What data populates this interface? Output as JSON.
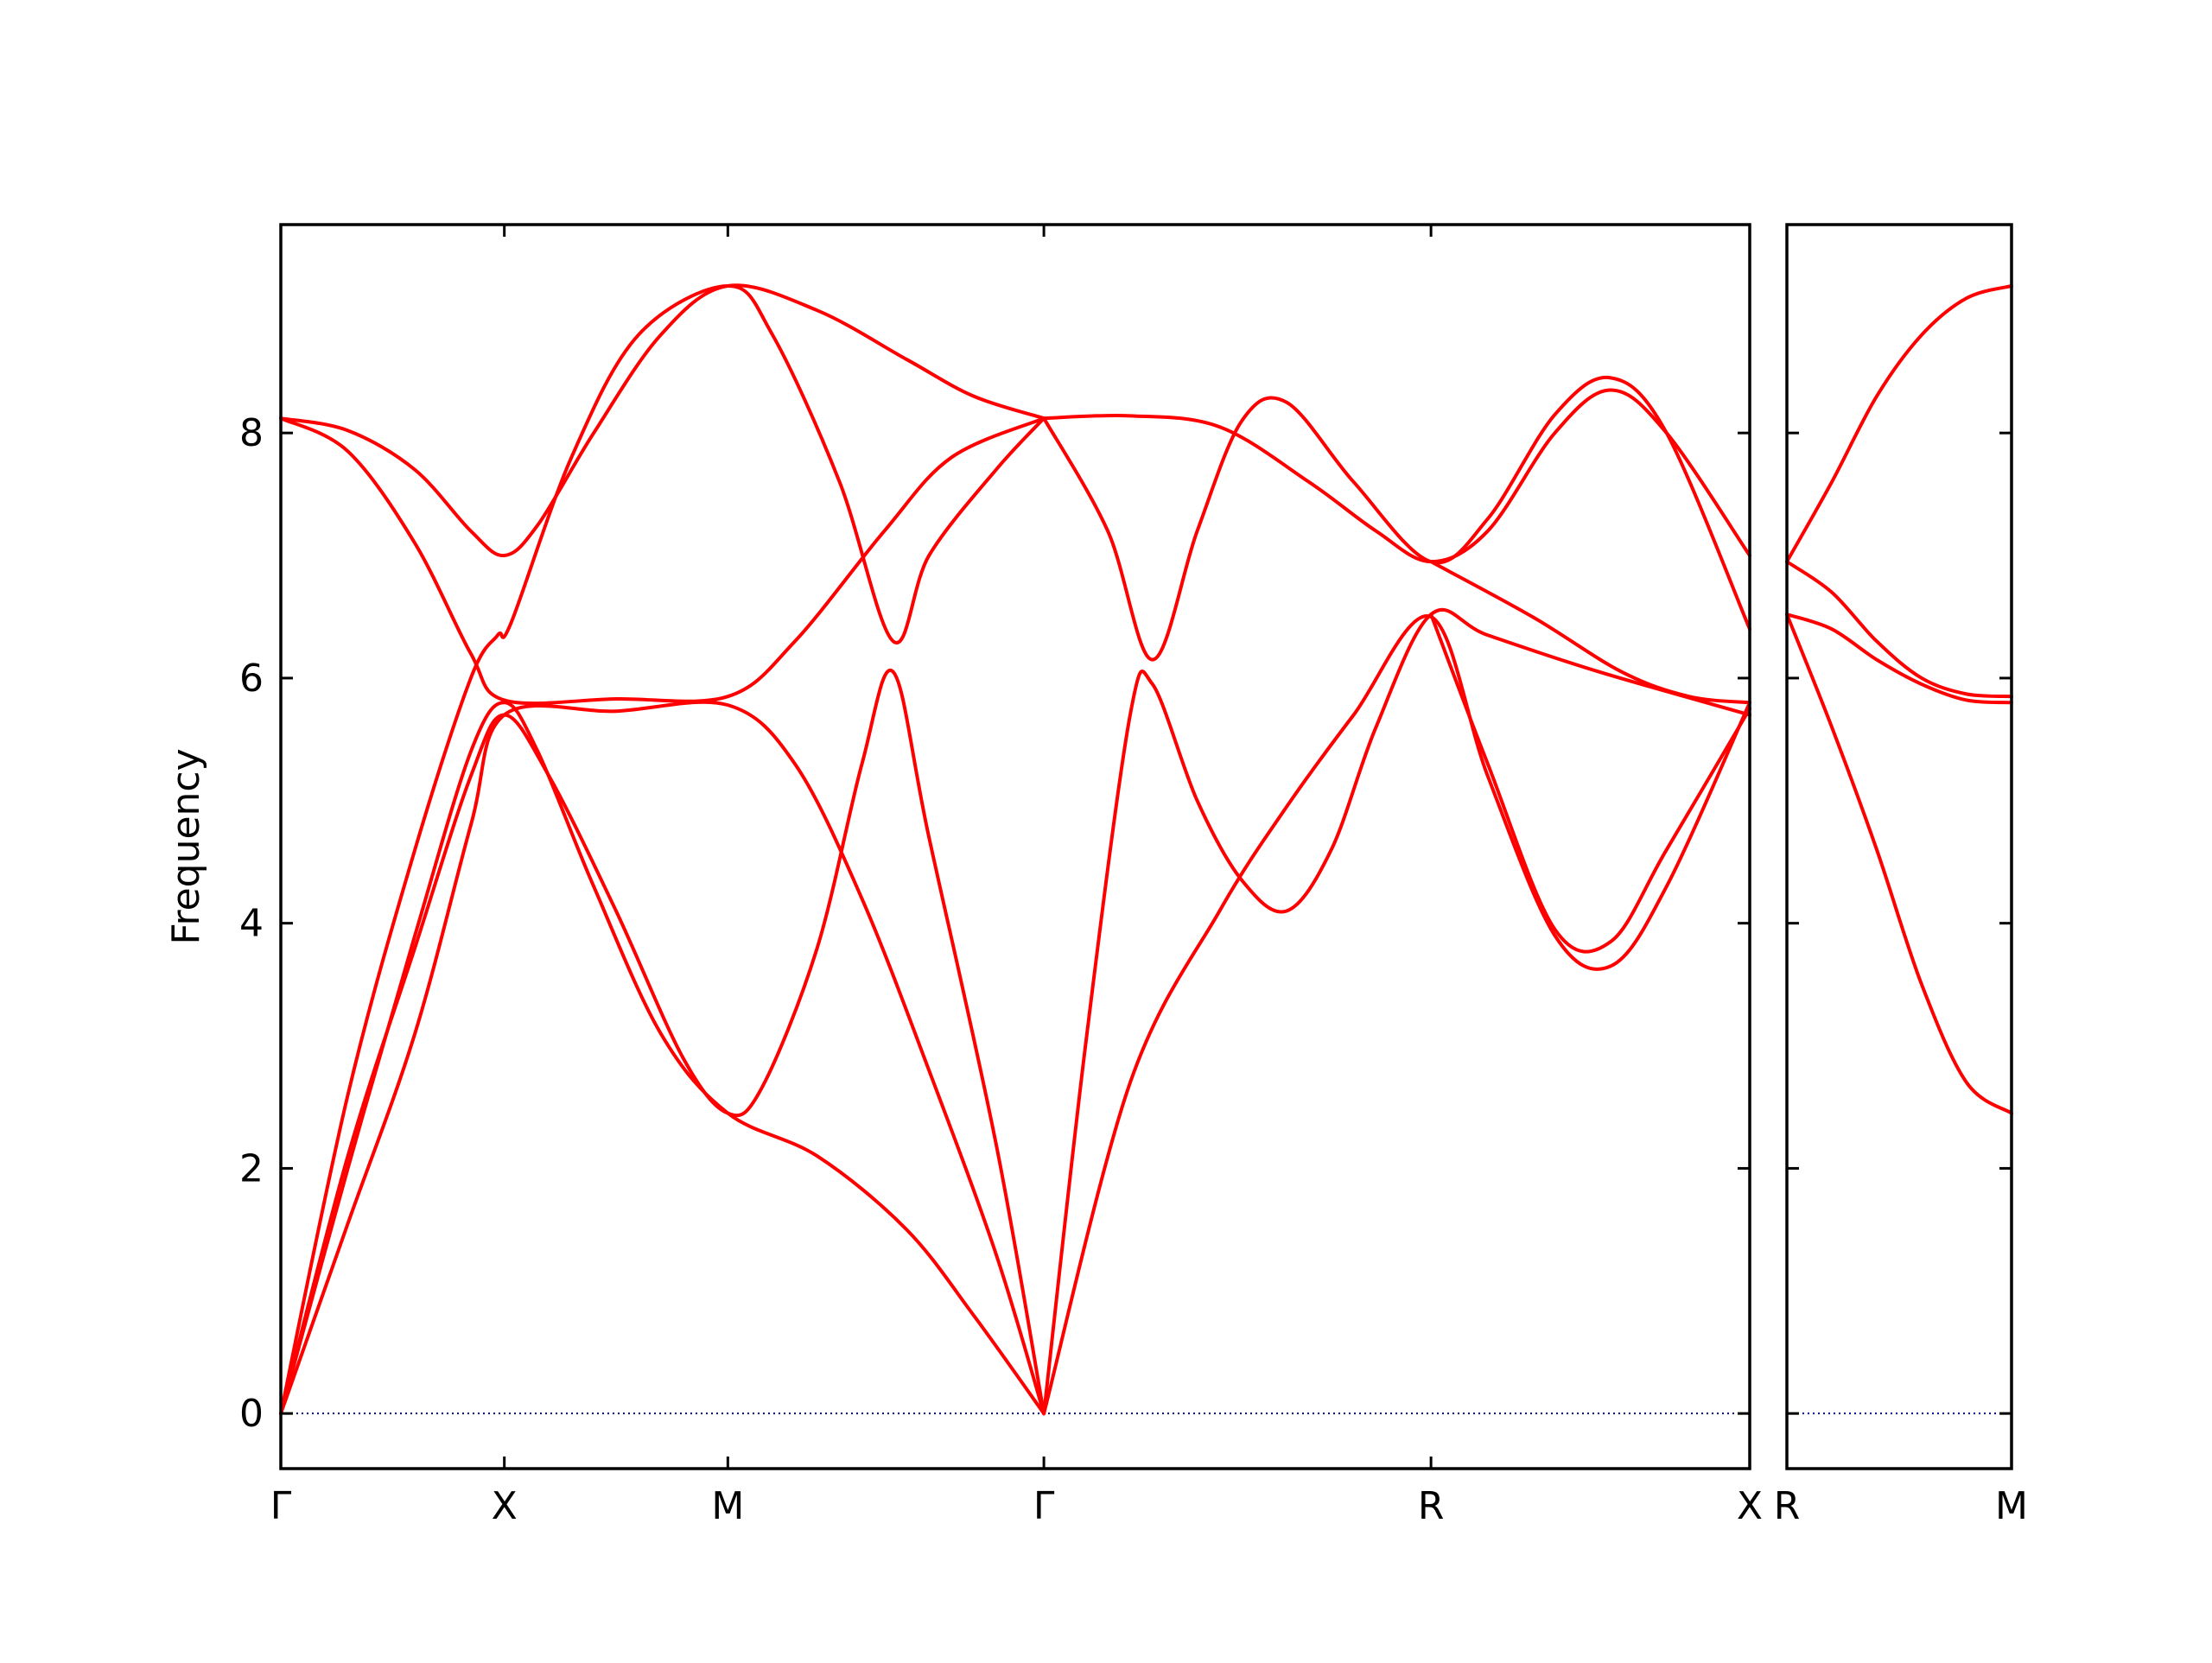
{
  "colors": {
    "band": "#ff0000",
    "zero_line": "#00008b",
    "frame": "#000000"
  },
  "chart_data": {
    "type": "line",
    "title": "",
    "ylabel": "Frequency",
    "ylim": [
      -0.45,
      9.7
    ],
    "yticks": [
      0,
      2,
      4,
      6,
      8
    ],
    "grid": false,
    "legend": "none",
    "zero_reference_line": true,
    "panels": [
      {
        "id": "main",
        "xlim": [
          0,
          6.572
        ],
        "high_symmetry_points": [
          {
            "label": "Γ",
            "x": 0.0
          },
          {
            "label": "X",
            "x": 1.0
          },
          {
            "label": "M",
            "x": 2.0
          },
          {
            "label": "Γ",
            "x": 3.414
          },
          {
            "label": "R",
            "x": 5.146
          },
          {
            "label": "X",
            "x": 6.572
          }
        ],
        "bands": [
          {
            "points": [
              [
                0,
                8.12
              ],
              [
                0.3,
                8.02
              ],
              [
                0.6,
                7.7
              ],
              [
                0.85,
                7.2
              ],
              [
                1,
                7.0
              ],
              [
                1.15,
                7.25
              ],
              [
                1.4,
                8.0
              ],
              [
                1.7,
                8.8
              ],
              [
                2,
                9.2
              ],
              [
                2.4,
                9.0
              ],
              [
                2.8,
                8.6
              ],
              [
                3.1,
                8.3
              ],
              [
                3.414,
                8.12
              ]
            ]
          },
          {
            "points": [
              [
                0,
                8.12
              ],
              [
                0.3,
                7.85
              ],
              [
                0.6,
                7.1
              ],
              [
                0.85,
                6.2
              ],
              [
                1,
                5.82
              ],
              [
                1.5,
                5.83
              ],
              [
                2,
                5.85
              ],
              [
                2.3,
                6.3
              ],
              [
                2.7,
                7.2
              ],
              [
                3.0,
                7.8
              ],
              [
                3.414,
                8.12
              ]
            ]
          },
          {
            "points": [
              [
                0,
                0
              ],
              [
                0.3,
                2.1
              ],
              [
                0.6,
                3.8
              ],
              [
                0.85,
                5.2
              ],
              [
                1,
                5.7
              ],
              [
                1.2,
                5.2
              ],
              [
                1.5,
                4.1
              ],
              [
                1.8,
                2.9
              ],
              [
                2,
                2.45
              ],
              [
                2.15,
                2.65
              ],
              [
                2.4,
                3.8
              ],
              [
                2.6,
                5.3
              ],
              [
                2.74,
                6.05
              ],
              [
                2.9,
                4.7
              ],
              [
                3.2,
                2.2
              ],
              [
                3.414,
                0
              ]
            ]
          },
          {
            "points": [
              [
                0,
                0
              ],
              [
                0.3,
                2.6
              ],
              [
                0.6,
                4.6
              ],
              [
                0.85,
                6.0
              ],
              [
                0.97,
                6.35
              ],
              [
                1.03,
                6.45
              ],
              [
                1.3,
                7.8
              ],
              [
                1.6,
                8.8
              ],
              [
                2,
                9.2
              ],
              [
                2.2,
                8.8
              ],
              [
                2.5,
                7.6
              ],
              [
                2.74,
                6.3
              ],
              [
                2.9,
                7.0
              ],
              [
                3.2,
                7.7
              ],
              [
                3.414,
                8.12
              ]
            ]
          },
          {
            "points": [
              [
                0,
                0
              ],
              [
                0.3,
                1.55
              ],
              [
                0.6,
                3.1
              ],
              [
                0.85,
                4.8
              ],
              [
                1,
                5.7
              ],
              [
                1.5,
                5.73
              ],
              [
                2,
                5.78
              ],
              [
                2.3,
                5.3
              ],
              [
                2.6,
                4.2
              ],
              [
                2.9,
                2.8
              ],
              [
                3.2,
                1.3
              ],
              [
                3.414,
                0
              ]
            ]
          },
          {
            "points": [
              [
                0,
                0
              ],
              [
                0.3,
                2.0
              ],
              [
                0.6,
                3.9
              ],
              [
                0.85,
                5.4
              ],
              [
                1,
                5.8
              ],
              [
                1.15,
                5.4
              ],
              [
                1.4,
                4.3
              ],
              [
                1.7,
                3.1
              ],
              [
                2,
                2.45
              ],
              [
                2.4,
                2.1
              ],
              [
                2.8,
                1.5
              ],
              [
                3.1,
                0.8
              ],
              [
                3.414,
                0
              ]
            ]
          },
          {
            "points": [
              [
                3.414,
                8.12
              ],
              [
                3.8,
                8.14
              ],
              [
                4.2,
                8.05
              ],
              [
                4.6,
                7.6
              ],
              [
                4.9,
                7.2
              ],
              [
                5.146,
                6.95
              ],
              [
                5.4,
                7.2
              ],
              [
                5.7,
                8.0
              ],
              [
                5.95,
                8.35
              ],
              [
                6.2,
                8.0
              ],
              [
                6.572,
                7.0
              ]
            ]
          },
          {
            "points": [
              [
                3.414,
                8.12
              ],
              [
                3.7,
                7.2
              ],
              [
                3.9,
                6.15
              ],
              [
                4.1,
                7.2
              ],
              [
                4.3,
                8.1
              ],
              [
                4.5,
                8.25
              ],
              [
                4.8,
                7.6
              ],
              [
                5.146,
                6.95
              ],
              [
                5.4,
                7.3
              ],
              [
                5.7,
                8.15
              ],
              [
                5.95,
                8.45
              ],
              [
                6.2,
                8.0
              ],
              [
                6.572,
                6.4
              ]
            ]
          },
          {
            "points": [
              [
                3.414,
                0
              ],
              [
                3.6,
                3.0
              ],
              [
                3.8,
                5.7
              ],
              [
                3.9,
                5.95
              ],
              [
                4.1,
                5.0
              ],
              [
                4.3,
                4.35
              ],
              [
                4.5,
                4.1
              ],
              [
                4.7,
                4.6
              ],
              [
                4.9,
                5.6
              ],
              [
                5.146,
                6.52
              ],
              [
                5.4,
                6.35
              ],
              [
                5.9,
                6.05
              ],
              [
                6.572,
                5.7
              ]
            ]
          },
          {
            "points": [
              [
                3.414,
                0
              ],
              [
                3.8,
                2.7
              ],
              [
                4.2,
                4.1
              ],
              [
                4.5,
                4.95
              ],
              [
                4.8,
                5.7
              ],
              [
                5.146,
                6.5
              ],
              [
                5.4,
                5.2
              ],
              [
                5.7,
                3.9
              ],
              [
                5.95,
                3.65
              ],
              [
                6.2,
                4.3
              ],
              [
                6.572,
                5.8
              ]
            ]
          },
          {
            "points": [
              [
                5.146,
                6.52
              ],
              [
                5.4,
                5.3
              ],
              [
                5.7,
                3.95
              ],
              [
                5.95,
                3.85
              ],
              [
                6.2,
                4.6
              ],
              [
                6.572,
                5.75
              ]
            ]
          },
          {
            "points": [
              [
                5.146,
                6.95
              ],
              [
                5.6,
                6.5
              ],
              [
                6.0,
                6.05
              ],
              [
                6.3,
                5.85
              ],
              [
                6.572,
                5.8
              ]
            ]
          }
        ]
      },
      {
        "id": "right",
        "xlim": [
          0,
          1.0
        ],
        "high_symmetry_points": [
          {
            "label": "R",
            "x": 0.0
          },
          {
            "label": "M",
            "x": 1.0
          }
        ],
        "bands": [
          {
            "points": [
              [
                0,
                6.95
              ],
              [
                0.2,
                7.6
              ],
              [
                0.4,
                8.3
              ],
              [
                0.6,
                8.8
              ],
              [
                0.8,
                9.1
              ],
              [
                1,
                9.2
              ]
            ]
          },
          {
            "points": [
              [
                0,
                6.95
              ],
              [
                0.2,
                6.7
              ],
              [
                0.4,
                6.3
              ],
              [
                0.6,
                6.0
              ],
              [
                0.8,
                5.87
              ],
              [
                1,
                5.85
              ]
            ]
          },
          {
            "points": [
              [
                0,
                6.52
              ],
              [
                0.2,
                6.4
              ],
              [
                0.4,
                6.15
              ],
              [
                0.6,
                5.95
              ],
              [
                0.8,
                5.82
              ],
              [
                1,
                5.8
              ]
            ]
          },
          {
            "points": [
              [
                0,
                6.52
              ],
              [
                0.2,
                5.6
              ],
              [
                0.4,
                4.6
              ],
              [
                0.6,
                3.5
              ],
              [
                0.8,
                2.7
              ],
              [
                1,
                2.45
              ]
            ]
          }
        ]
      }
    ]
  }
}
